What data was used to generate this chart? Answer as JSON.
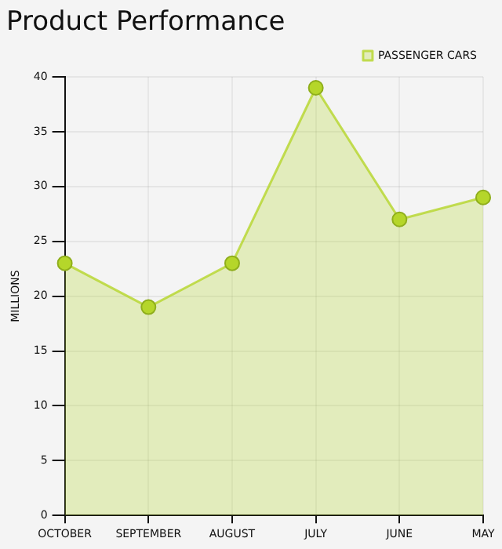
{
  "chart_data": {
    "type": "area",
    "title": "Product Performance",
    "ylabel": "MILLIONS",
    "categories": [
      "OCTOBER",
      "SEPTEMBER",
      "AUGUST",
      "JULY",
      "JUNE",
      "MAY"
    ],
    "series": [
      {
        "name": "PASSENGER CARS",
        "color": "#b5d62a",
        "values": [
          23,
          19,
          23,
          39,
          27,
          29
        ]
      }
    ],
    "ylim": [
      0,
      40
    ],
    "yticks": [
      0,
      5,
      10,
      15,
      20,
      25,
      30,
      35,
      40
    ],
    "grid": true,
    "legend": "top right",
    "marker": "circle"
  }
}
